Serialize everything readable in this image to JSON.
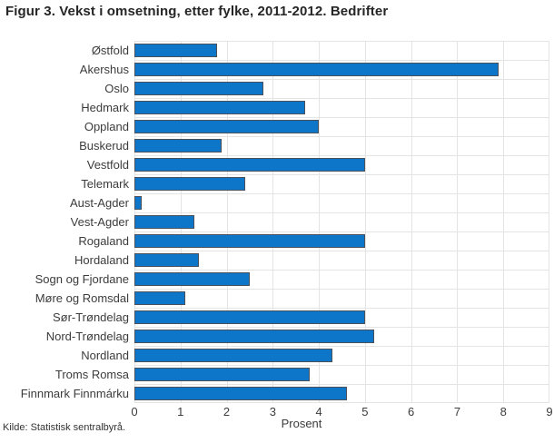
{
  "title": "Figur 3. Vekst i omsetning, etter fylke, 2011-2012. Bedrifter",
  "source": "Kilde: Statistisk sentralbyrå.",
  "chart_data": {
    "type": "bar",
    "orientation": "horizontal",
    "title": "Figur 3. Vekst i omsetning, etter fylke, 2011-2012. Bedrifter",
    "xlabel": "Prosent",
    "ylabel": "",
    "xlim": [
      0,
      9
    ],
    "xticks": [
      0,
      1,
      2,
      3,
      4,
      5,
      6,
      7,
      8,
      9
    ],
    "grid": true,
    "legend": "none",
    "bar_color": "#0d76c8",
    "bar_border_color": "#49525c",
    "grid_color": "#e4e4e4",
    "categories": [
      "Østfold",
      "Akershus",
      "Oslo",
      "Hedmark",
      "Oppland",
      "Buskerud",
      "Vestfold",
      "Telemark",
      "Aust-Agder",
      "Vest-Agder",
      "Rogaland",
      "Hordaland",
      "Sogn og Fjordane",
      "Møre og Romsdal",
      "Sør-Trøndelag",
      "Nord-Trøndelag",
      "Nordland",
      "Troms Romsa",
      "Finnmark Finnmárku"
    ],
    "values": [
      1.8,
      7.9,
      2.8,
      3.7,
      4.0,
      1.9,
      5.0,
      2.4,
      0.15,
      1.3,
      5.0,
      1.4,
      2.5,
      1.1,
      5.0,
      5.2,
      4.3,
      3.8,
      4.6
    ]
  }
}
